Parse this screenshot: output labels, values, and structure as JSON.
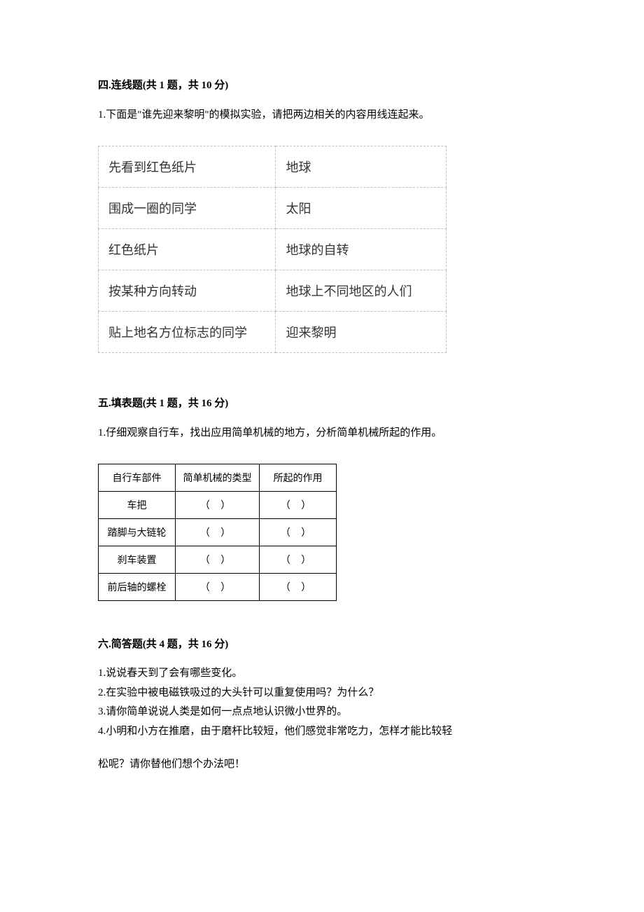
{
  "section4": {
    "heading": "四.连线题(共 1 题，共 10 分)",
    "question": "1.下面是\"谁先迎来黎明\"的模拟实验，请把两边相关的内容用线连起来。",
    "table": {
      "rows": [
        {
          "left": "先看到红色纸片",
          "right": "地球"
        },
        {
          "left": "围成一圈的同学",
          "right": "太阳"
        },
        {
          "left": "红色纸片",
          "right": "地球的自转"
        },
        {
          "left": "按某种方向转动",
          "right": "地球上不同地区的人们"
        },
        {
          "left": "贴上地名方位标志的同学",
          "right": "迎来黎明"
        }
      ]
    }
  },
  "section5": {
    "heading": "五.填表题(共 1 题，共 16 分)",
    "question": "1.仔细观察自行车，找出应用简单机械的地方，分析简单机械所起的作用。",
    "table": {
      "headers": [
        "自行车部件",
        "简单机械的类型",
        "所起的作用"
      ],
      "blank": "（  ）",
      "parts": [
        "车把",
        "踏脚与大链轮",
        "刹车装置",
        "前后轴的螺栓"
      ]
    }
  },
  "section6": {
    "heading": "六.简答题(共 4 题，共 16 分)",
    "items": [
      "1.说说春天到了会有哪些变化。",
      "2.在实验中被电磁铁吸过的大头针可以重复使用吗？为什么？",
      "3.请你简单说说人类是如何一点点地认识微小世界的。",
      "4.小明和小方在推磨，由于磨杆比较短，他们感觉非常吃力，怎样才能比较轻"
    ],
    "continuation": "松呢？请你替他们想个办法吧！"
  }
}
